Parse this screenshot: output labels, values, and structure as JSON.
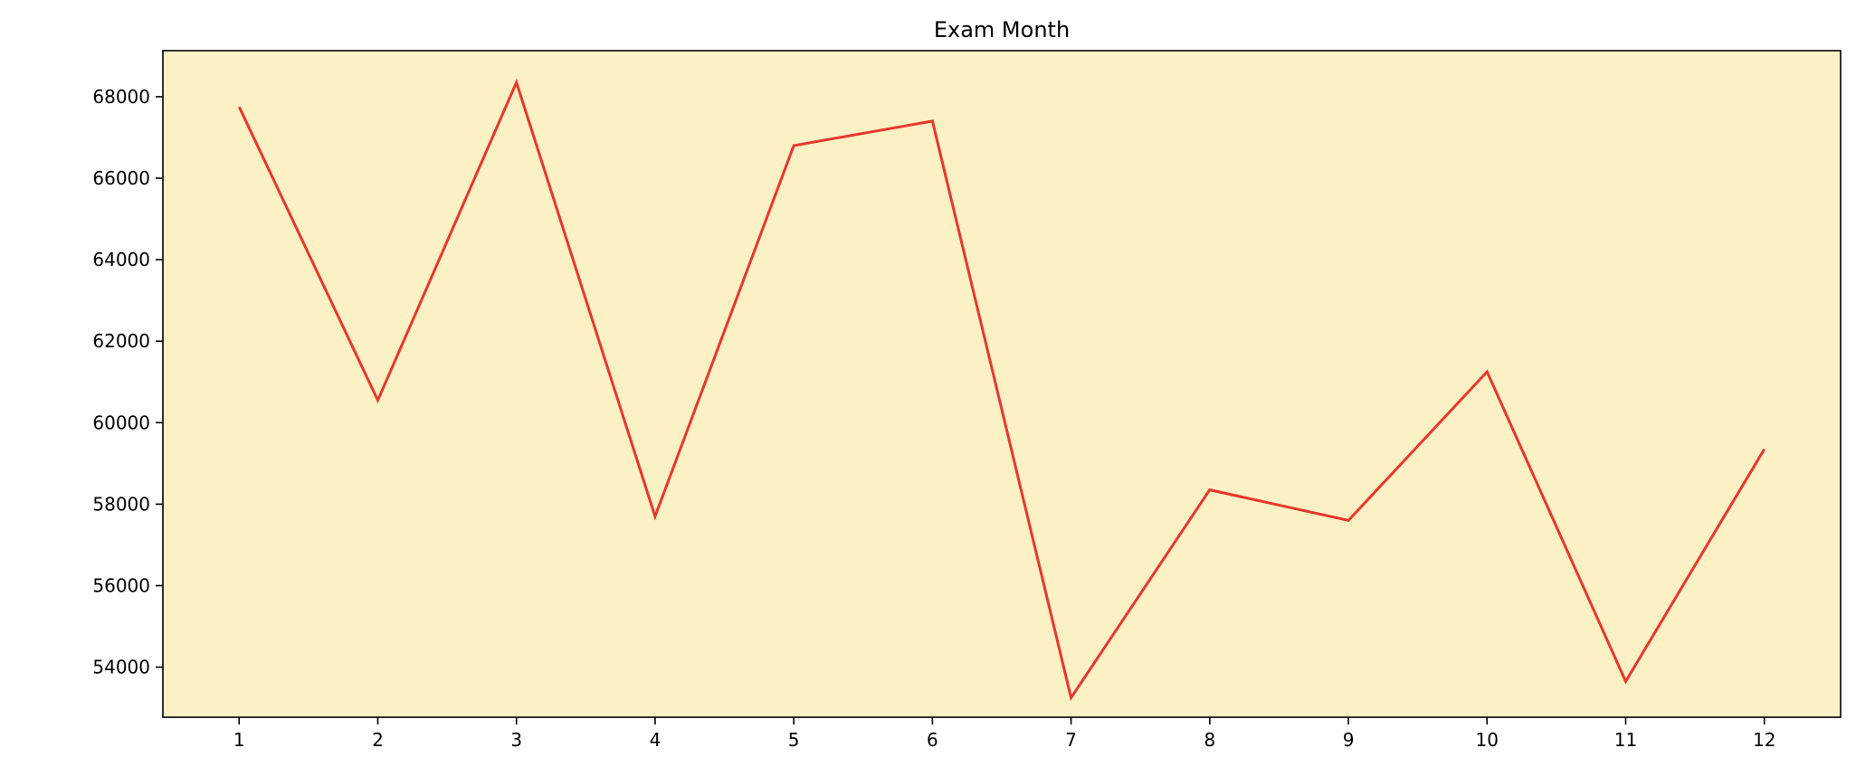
{
  "chart_data": {
    "type": "line",
    "title": "Exam Month",
    "xlabel": "",
    "ylabel": "",
    "x": [
      1,
      2,
      3,
      4,
      5,
      6,
      7,
      8,
      9,
      10,
      11,
      12
    ],
    "series": [
      {
        "values": [
          67750,
          60550,
          68350,
          57700,
          66800,
          67400,
          53250,
          58350,
          57600,
          61250,
          53650,
          59350
        ],
        "color": "#e8372c"
      }
    ],
    "xticks": [
      "1",
      "2",
      "3",
      "4",
      "5",
      "6",
      "7",
      "8",
      "9",
      "10",
      "11",
      "12"
    ],
    "yticks": [
      "54000",
      "56000",
      "58000",
      "60000",
      "62000",
      "64000",
      "66000",
      "68000"
    ],
    "xlim": [
      0.45,
      12.55
    ],
    "ylim": [
      52770,
      69130
    ],
    "grid": false,
    "legend": "none",
    "background_color": "#fcf0c5"
  }
}
